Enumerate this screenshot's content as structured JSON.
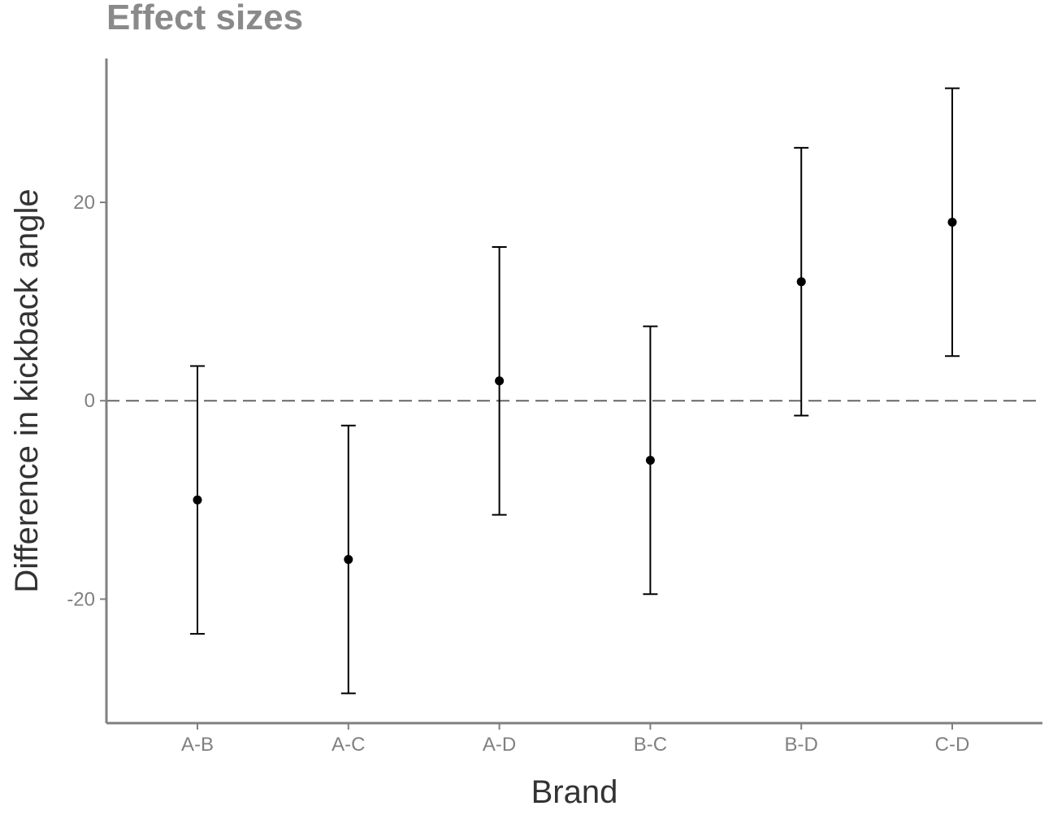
{
  "chart_data": {
    "type": "scatter",
    "title": "Effect sizes",
    "xlabel": "Brand",
    "ylabel": "Difference in kickback angle",
    "categories": [
      "A-B",
      "A-C",
      "A-D",
      "B-C",
      "B-D",
      "C-D"
    ],
    "estimates": [
      -10,
      -16,
      2,
      -6,
      12,
      18
    ],
    "lower": [
      -23.5,
      -29.5,
      -11.5,
      -19.5,
      -1.5,
      4.5
    ],
    "upper": [
      3.5,
      -2.5,
      15.5,
      7.5,
      25.5,
      31.5
    ],
    "yticks": [
      -20,
      0,
      20
    ],
    "ylim": [
      -32.5,
      34.5
    ],
    "reference_line": 0,
    "grid": false,
    "error_bars": true
  }
}
